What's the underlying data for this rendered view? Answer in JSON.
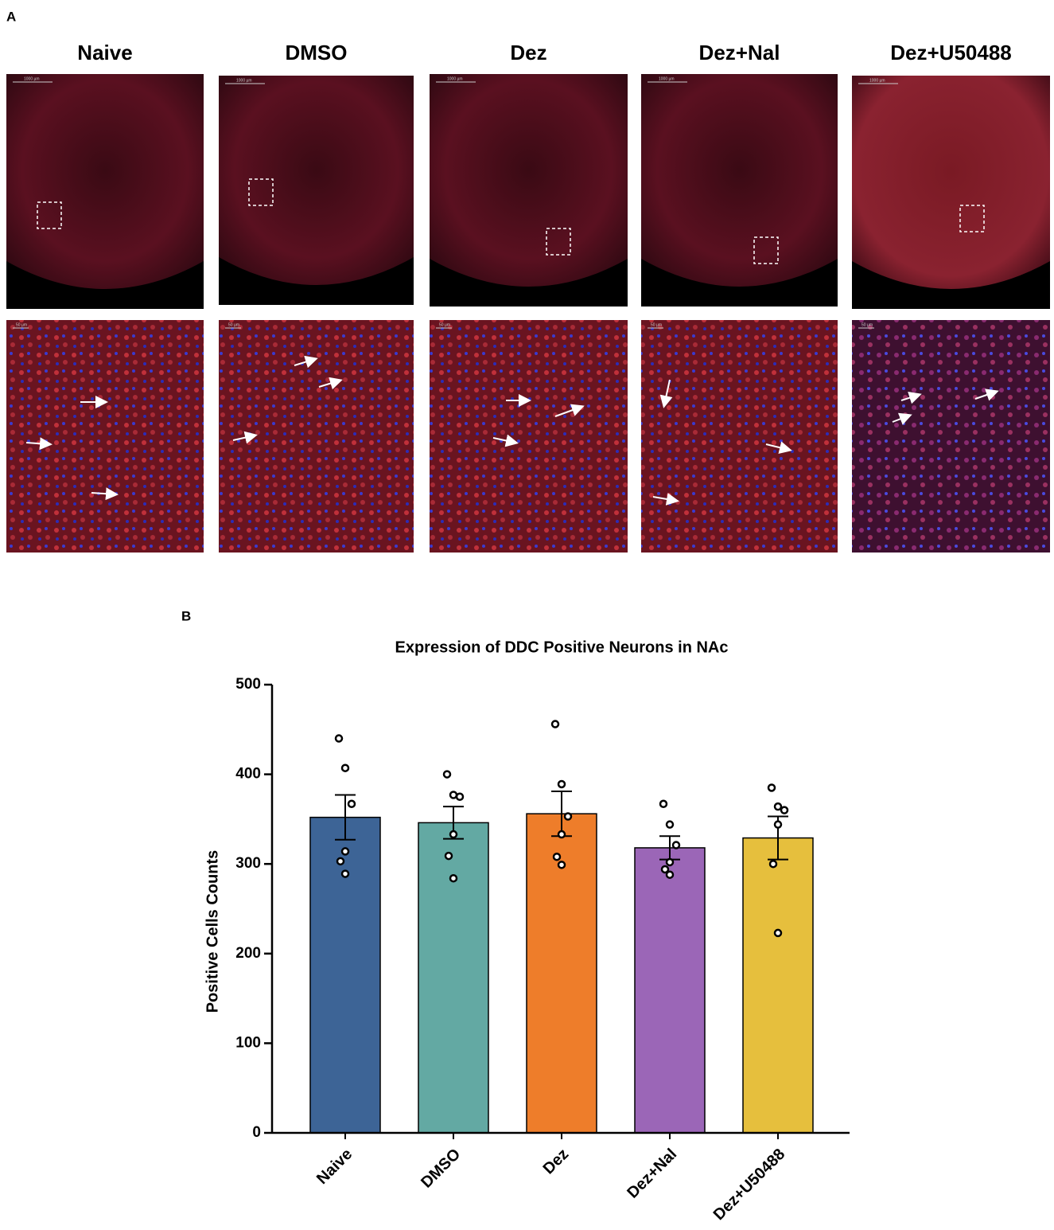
{
  "panel_a": {
    "label": "A",
    "columns": [
      "Naive",
      "DMSO",
      "Dez",
      "Dez+Nal",
      "Dez+U50488"
    ],
    "scale_top": "1000 µm",
    "scale_bottom": "50 µm"
  },
  "chart_data": {
    "panel_label": "B",
    "type": "bar",
    "title": "Expression of DDC Positive Neurons in NAc",
    "y_label": "Positive Cells Counts",
    "categories": [
      "Naive",
      "DMSO",
      "Dez",
      "Dez+Nal",
      "Dez+U50488"
    ],
    "values": [
      352,
      346,
      356,
      318,
      329
    ],
    "errors": [
      25,
      18,
      25,
      13,
      24
    ],
    "points": [
      [
        440,
        407,
        367,
        314,
        303,
        289
      ],
      [
        400,
        377,
        375,
        333,
        309,
        284
      ],
      [
        456,
        389,
        353,
        333,
        308,
        299
      ],
      [
        367,
        344,
        321,
        302,
        294,
        288
      ],
      [
        385,
        364,
        360,
        344,
        300,
        223
      ]
    ],
    "colors": [
      "#3d6496",
      "#63a9a3",
      "#ee7d2a",
      "#9b66b7",
      "#e6bf3d"
    ],
    "ylim": [
      0,
      500
    ],
    "yticks": [
      0,
      100,
      200,
      300,
      400,
      500
    ]
  }
}
